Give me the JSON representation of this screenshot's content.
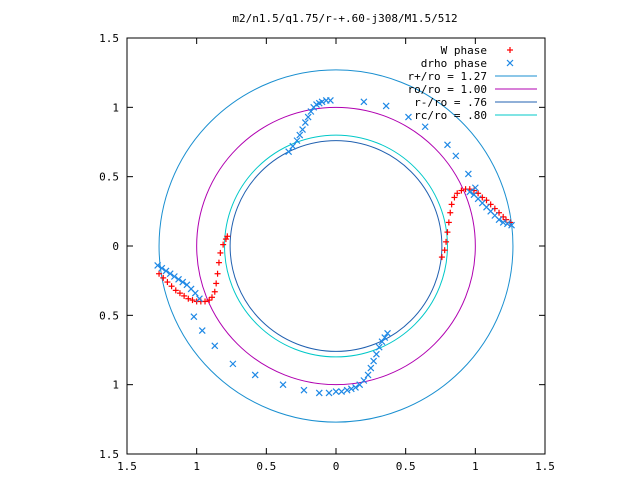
{
  "chart_data": {
    "type": "scatter",
    "title": "m2/n1.5/q1.75/r-+.60-j308/M1.5/512",
    "xlabel": "",
    "ylabel": "",
    "xlim": [
      -1.5,
      1.5
    ],
    "ylim": [
      -1.5,
      1.5
    ],
    "x_tick_values": [
      -1.5,
      -1,
      -0.5,
      0,
      0.5,
      1,
      1.5
    ],
    "x_tick_labels": [
      "1.5",
      "1",
      "0.5",
      "0",
      "0.5",
      "1",
      "1.5"
    ],
    "y_tick_values": [
      1.5,
      1,
      0.5,
      0,
      -0.5,
      -1,
      -1.5
    ],
    "y_tick_labels": [
      "1.5",
      "1",
      "0.5",
      "0",
      "0.5",
      "1",
      "1.5"
    ],
    "grid": false,
    "legend_position": "top-right",
    "circles": [
      {
        "name": "r+/ro = 1.27",
        "radius": 1.27,
        "color": "#1a8fd0"
      },
      {
        "name": "ro/ro = 1.00",
        "radius": 1.0,
        "color": "#b000b0"
      },
      {
        "name": "r-/ro = .76",
        "radius": 0.76,
        "color": "#2060b0"
      },
      {
        "name": "rc/ro = .80",
        "radius": 0.8,
        "color": "#00c8c8"
      }
    ],
    "series": [
      {
        "name": "W phase",
        "marker": "plus",
        "color": "#ff0000",
        "points": [
          [
            -1.27,
            -0.2
          ],
          [
            -1.24,
            -0.23
          ],
          [
            -1.21,
            -0.26
          ],
          [
            -1.18,
            -0.29
          ],
          [
            -1.15,
            -0.32
          ],
          [
            -1.12,
            -0.34
          ],
          [
            -1.09,
            -0.36
          ],
          [
            -1.06,
            -0.38
          ],
          [
            -1.03,
            -0.39
          ],
          [
            -1.0,
            -0.4
          ],
          [
            -0.97,
            -0.4
          ],
          [
            -0.94,
            -0.4
          ],
          [
            -0.91,
            -0.39
          ],
          [
            -0.89,
            -0.37
          ],
          [
            -0.87,
            -0.33
          ],
          [
            -0.86,
            -0.27
          ],
          [
            -0.85,
            -0.2
          ],
          [
            -0.84,
            -0.12
          ],
          [
            -0.83,
            -0.05
          ],
          [
            -0.81,
            0.01
          ],
          [
            -0.79,
            0.05
          ],
          [
            -0.78,
            0.07
          ],
          [
            0.76,
            -0.08
          ],
          [
            0.78,
            -0.03
          ],
          [
            0.79,
            0.03
          ],
          [
            0.8,
            0.1
          ],
          [
            0.81,
            0.17
          ],
          [
            0.82,
            0.24
          ],
          [
            0.83,
            0.3
          ],
          [
            0.85,
            0.35
          ],
          [
            0.87,
            0.38
          ],
          [
            0.9,
            0.4
          ],
          [
            0.93,
            0.41
          ],
          [
            0.96,
            0.41
          ],
          [
            0.99,
            0.4
          ],
          [
            1.02,
            0.38
          ],
          [
            1.05,
            0.35
          ],
          [
            1.08,
            0.33
          ],
          [
            1.11,
            0.3
          ],
          [
            1.14,
            0.27
          ],
          [
            1.17,
            0.24
          ],
          [
            1.2,
            0.21
          ],
          [
            1.22,
            0.19
          ],
          [
            1.25,
            0.17
          ]
        ]
      },
      {
        "name": "drho phase",
        "marker": "cross",
        "color": "#1e88e5",
        "points": [
          [
            -1.28,
            -0.14
          ],
          [
            -1.25,
            -0.16
          ],
          [
            -1.22,
            -0.18
          ],
          [
            -1.19,
            -0.2
          ],
          [
            -1.16,
            -0.22
          ],
          [
            -1.13,
            -0.24
          ],
          [
            -1.1,
            -0.26
          ],
          [
            -1.07,
            -0.28
          ],
          [
            -1.04,
            -0.31
          ],
          [
            -1.01,
            -0.34
          ],
          [
            -0.98,
            -0.38
          ],
          [
            -1.02,
            -0.51
          ],
          [
            -0.96,
            -0.61
          ],
          [
            -0.87,
            -0.72
          ],
          [
            -0.74,
            -0.85
          ],
          [
            -0.58,
            -0.93
          ],
          [
            -0.38,
            -1.0
          ],
          [
            -0.23,
            -1.04
          ],
          [
            -0.12,
            -1.06
          ],
          [
            -0.05,
            -1.06
          ],
          [
            0.0,
            -1.05
          ],
          [
            0.04,
            -1.05
          ],
          [
            0.08,
            -1.04
          ],
          [
            0.11,
            -1.03
          ],
          [
            0.14,
            -1.02
          ],
          [
            0.17,
            -1.0
          ],
          [
            0.2,
            -0.97
          ],
          [
            0.23,
            -0.93
          ],
          [
            0.25,
            -0.88
          ],
          [
            0.27,
            -0.83
          ],
          [
            0.29,
            -0.78
          ],
          [
            0.31,
            -0.73
          ],
          [
            0.33,
            -0.69
          ],
          [
            0.35,
            -0.66
          ],
          [
            0.37,
            -0.63
          ],
          [
            -0.34,
            0.68
          ],
          [
            -0.31,
            0.72
          ],
          [
            -0.28,
            0.76
          ],
          [
            -0.26,
            0.8
          ],
          [
            -0.24,
            0.84
          ],
          [
            -0.22,
            0.89
          ],
          [
            -0.2,
            0.93
          ],
          [
            -0.18,
            0.97
          ],
          [
            -0.16,
            1.0
          ],
          [
            -0.14,
            1.02
          ],
          [
            -0.12,
            1.03
          ],
          [
            -0.1,
            1.04
          ],
          [
            -0.07,
            1.05
          ],
          [
            -0.04,
            1.05
          ],
          [
            0.2,
            1.04
          ],
          [
            0.36,
            1.01
          ],
          [
            0.52,
            0.93
          ],
          [
            0.64,
            0.86
          ],
          [
            0.8,
            0.73
          ],
          [
            0.86,
            0.65
          ],
          [
            0.95,
            0.52
          ],
          [
            1.0,
            0.42
          ],
          [
            0.96,
            0.39
          ],
          [
            0.99,
            0.37
          ],
          [
            1.02,
            0.34
          ],
          [
            1.05,
            0.31
          ],
          [
            1.08,
            0.28
          ],
          [
            1.11,
            0.25
          ],
          [
            1.14,
            0.22
          ],
          [
            1.17,
            0.19
          ],
          [
            1.2,
            0.17
          ],
          [
            1.23,
            0.16
          ],
          [
            1.26,
            0.15
          ]
        ]
      }
    ]
  }
}
